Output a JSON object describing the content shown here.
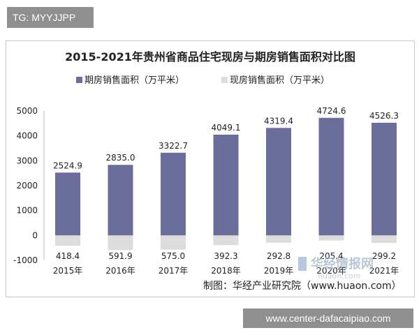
{
  "header_tag": "TG: MYYJJPP",
  "footer_tag": "www.center-dafacaipiao.com",
  "source_note": "制图：华经产业研究院（www.huaon.com）",
  "watermark": {
    "text": "华经情报网",
    "url": "huaon.com"
  },
  "colors": {
    "forward": "#6b6e9a",
    "spot": "#dcdcdc",
    "axis": "#bbbbbb",
    "text": "#222222"
  },
  "chart_data": {
    "type": "bar",
    "title": "2015-2021年贵州省商品住宅现房与期房销售面积对比图",
    "categories": [
      "2015年",
      "2016年",
      "2017年",
      "2018年",
      "2019年",
      "2020年",
      "2021年"
    ],
    "series": [
      {
        "name": "期房销售面积（万平米）",
        "values": [
          2524.9,
          2835.0,
          3322.7,
          4049.1,
          4319.4,
          4724.6,
          4526.3
        ],
        "labels": [
          "2524.9",
          "2835.0",
          "3322.7",
          "4049.1",
          "4319.4",
          "4724.6",
          "4526.3"
        ]
      },
      {
        "name": "现房销售面积（万平米）",
        "values": [
          -418.4,
          -591.9,
          -575.0,
          -392.3,
          -292.8,
          -205.4,
          -299.2
        ],
        "labels": [
          "418.4",
          "591.9",
          "575.0",
          "392.3",
          "292.8",
          "205.4",
          "299.2"
        ]
      }
    ],
    "yticks": [
      "5000",
      "4000",
      "3000",
      "2000",
      "1000",
      "0",
      "-1000"
    ],
    "ylim": [
      -1000,
      5000
    ],
    "grid": false,
    "legend": "top-left"
  }
}
